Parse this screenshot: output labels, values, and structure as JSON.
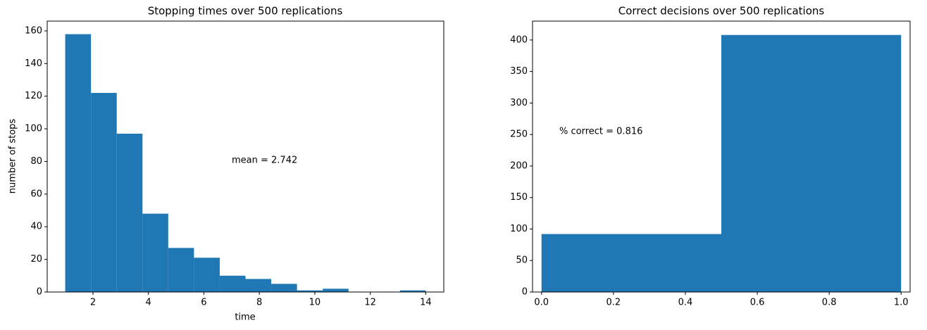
{
  "chart_data": [
    {
      "type": "histogram",
      "title": "Stopping times over 500 replications",
      "xlabel": "time",
      "ylabel": "number of stops",
      "bins": [
        1,
        1.9285714,
        2.8571429,
        3.7857143,
        4.7142857,
        5.6428571,
        6.5714286,
        7.5,
        8.4285714,
        9.3571429,
        10.2857143,
        11.2142857,
        12.1428571,
        13.0714286,
        14
      ],
      "counts": [
        158,
        122,
        97,
        48,
        27,
        21,
        10,
        8,
        5,
        1,
        2,
        0,
        0,
        1
      ],
      "color": "#1f77b4",
      "xlim": [
        0.35,
        14.65
      ],
      "ylim": [
        0,
        166
      ],
      "xticks": [
        2,
        4,
        6,
        8,
        10,
        12,
        14
      ],
      "yticks": [
        0,
        20,
        40,
        60,
        80,
        100,
        120,
        140,
        160
      ],
      "annotation": "mean = 2.742"
    },
    {
      "type": "histogram",
      "title": "Correct decisions over 500 replications",
      "bins": [
        0,
        0.5,
        1
      ],
      "counts": [
        92,
        408
      ],
      "color": "#1f77b4",
      "xlim": [
        -0.025,
        1.025
      ],
      "ylim": [
        0,
        430
      ],
      "xticks": [
        {
          "value": 0,
          "label": "0.0"
        },
        {
          "value": 0.2,
          "label": "0.2"
        },
        {
          "value": 0.4,
          "label": "0.4"
        },
        {
          "value": 0.6,
          "label": "0.6"
        },
        {
          "value": 0.8,
          "label": "0.8"
        },
        {
          "value": 1,
          "label": "1.0"
        }
      ],
      "yticks": [
        0,
        50,
        100,
        150,
        200,
        250,
        300,
        350,
        400
      ],
      "annotation": "% correct = 0.816"
    }
  ]
}
